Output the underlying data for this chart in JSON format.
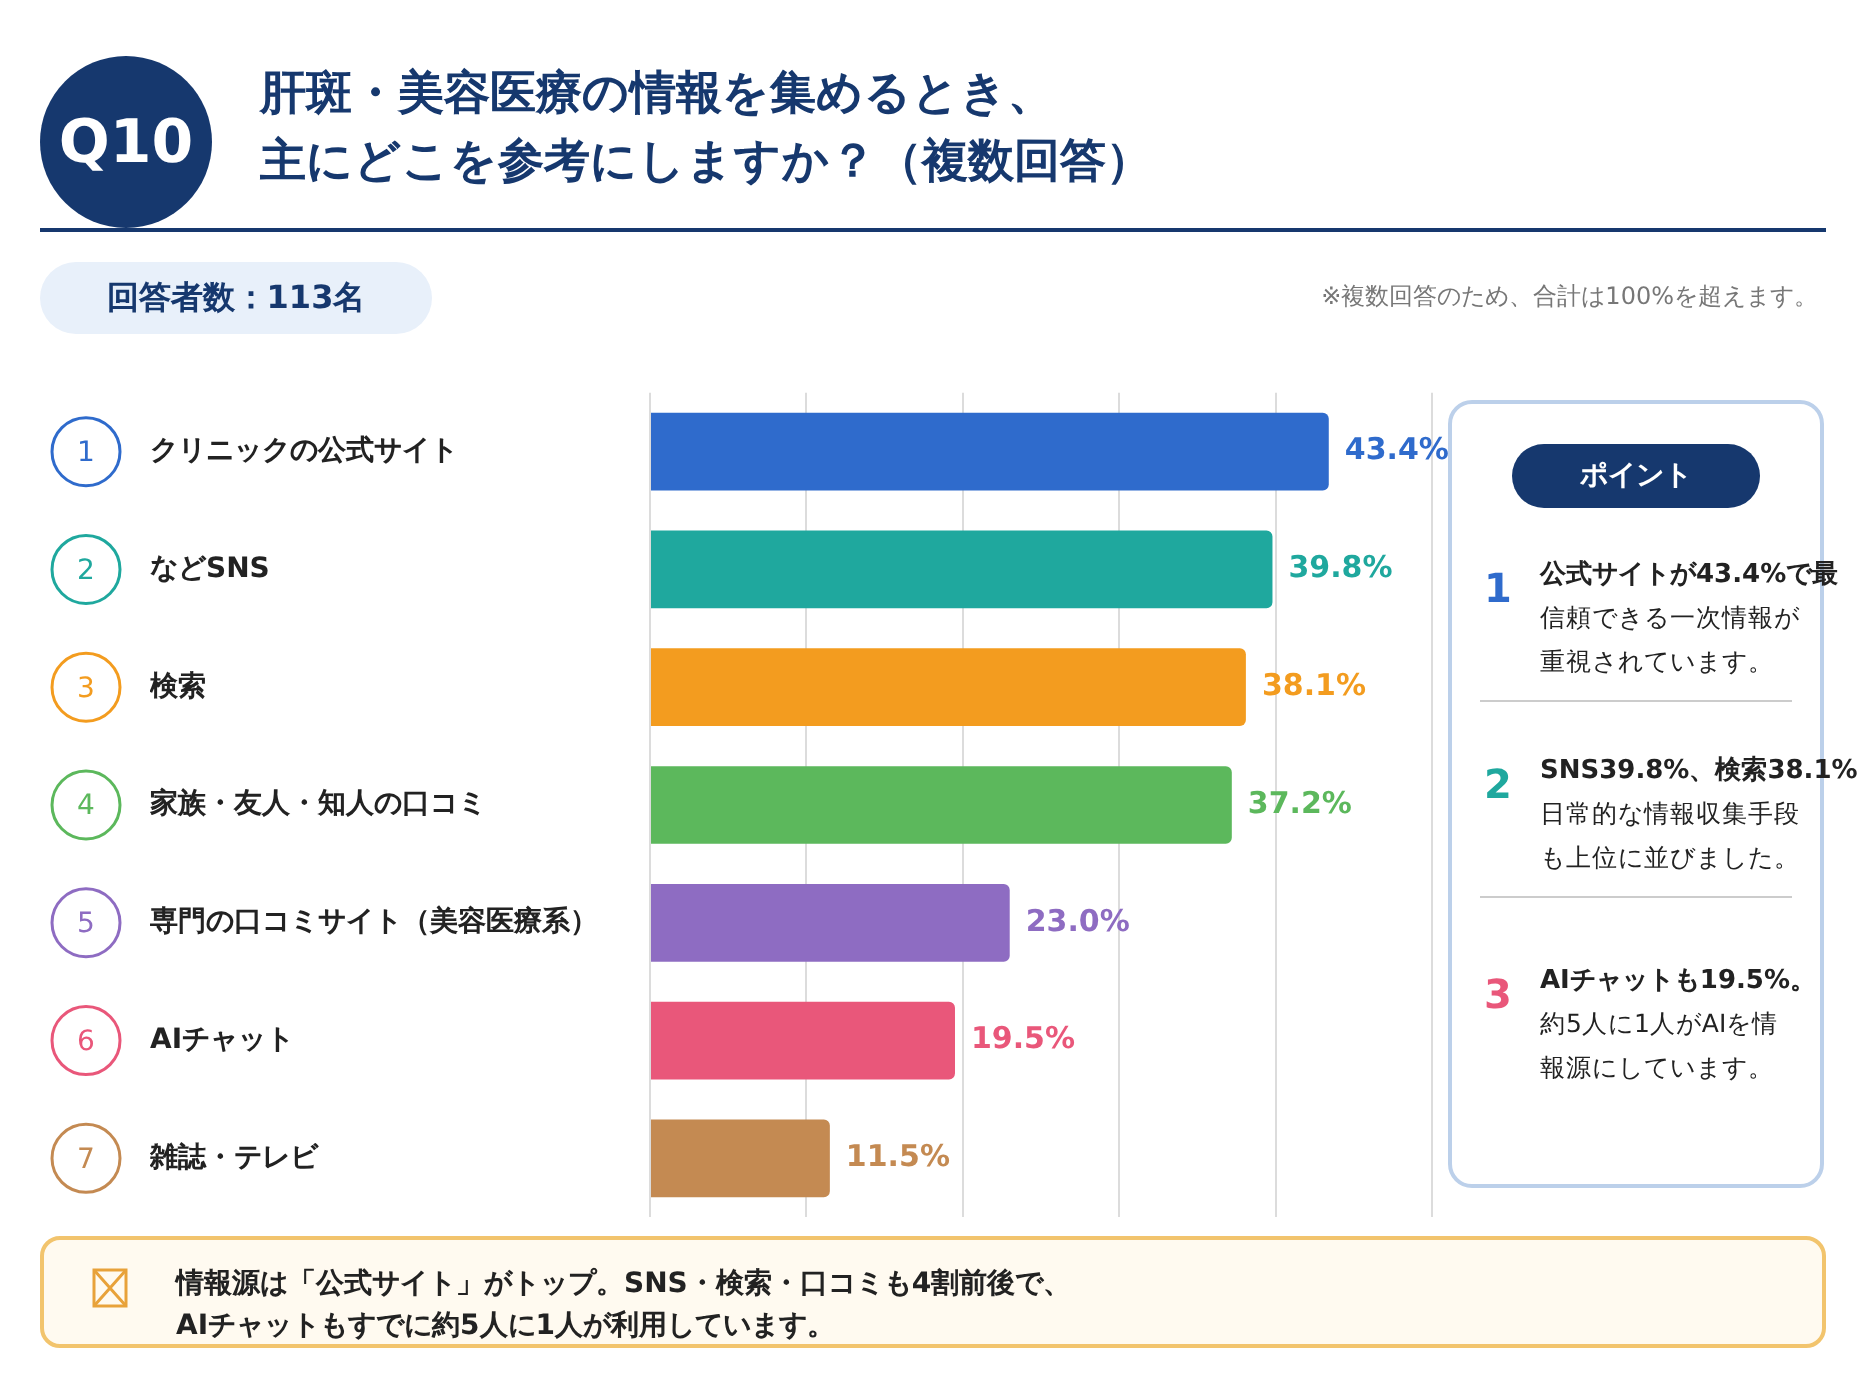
{
  "chart_data": {
    "type": "bar",
    "orientation": "horizontal",
    "title": "肝斑・美容医療の情報を集めるとき、主にどこを参考にしますか？（複数回答）",
    "subtitle": "回答者数：113名",
    "categories": [
      "クリニックの公式サイト",
      "などSNS",
      "検索",
      "家族・友人・知人の口コミ",
      "専門の口コミサイト（美容医療系）",
      "AIチャット",
      "雑誌・テレビ"
    ],
    "values": [
      43.4,
      39.8,
      38.1,
      37.2,
      23.0,
      19.5,
      11.5
    ],
    "colors": [
      "#2f6bcc",
      "#1fa89e",
      "#f39c1f",
      "#5cb85c",
      "#8e6cc2",
      "#e9577a",
      "#c48a52"
    ],
    "value_labels": [
      "43.4%",
      "39.8%",
      "38.1%",
      "37.2%",
      "23.0%",
      "19.5%",
      "11.5%"
    ],
    "xlim": [
      0,
      50
    ],
    "xticks": [
      {
        "value": 0,
        "label": null
      },
      {
        "value": 10,
        "label": null
      },
      {
        "value": 20,
        "label": null
      },
      {
        "value": 30,
        "label": null
      },
      {
        "value": 40,
        "label": null
      },
      {
        "value": 50,
        "label": null
      }
    ],
    "grid": "x",
    "tick_labels": "y",
    "legend": false,
    "annotations": [
      "Q10",
      "※複数回答のため、合計は100%を超えます。",
      "ポイント",
      "1",
      "公式サイトが43.4%で最",
      "信頼できる一次情報が重視されています。",
      "2",
      "SNS39.8%、検索38.1%",
      "日常的な情報収集手段も上位に並びました。",
      "3",
      "AIチャットも19.5%。",
      "約5人に1人がAIを情報源にしています。",
      "情報源は「公式サイト」がトップ。SNS・検索・口コミも4割前後で、AIチャットもすでに約5人に1人が利用しています。",
      "1",
      "2",
      "3",
      "4",
      "5",
      "6",
      "7"
    ]
  }
}
